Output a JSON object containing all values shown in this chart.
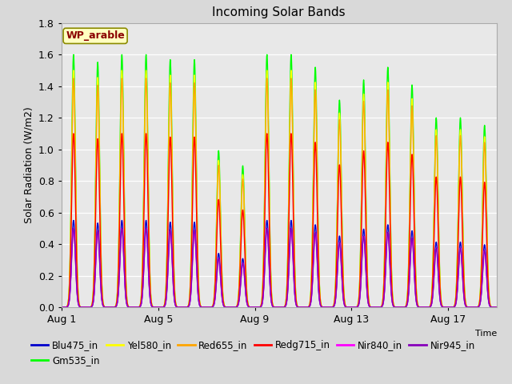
{
  "title": "Incoming Solar Bands",
  "xlabel": "Time",
  "ylabel": "Solar Radiation (W/m2)",
  "annotation_text": "WP_arable",
  "annotation_color": "#8B0000",
  "annotation_bg": "#FFFFC0",
  "annotation_border": "#8B8B00",
  "ylim": [
    0.0,
    1.8
  ],
  "yticks": [
    0.0,
    0.2,
    0.4,
    0.6,
    0.8,
    1.0,
    1.2,
    1.4,
    1.6,
    1.8
  ],
  "xtick_labels": [
    "Aug 1",
    "Aug 5",
    "Aug 9",
    "Aug 13",
    "Aug 17"
  ],
  "xtick_positions": [
    0,
    4,
    8,
    12,
    16
  ],
  "n_days": 18,
  "samples_per_day": 200,
  "figsize": [
    6.4,
    4.8
  ],
  "dpi": 100,
  "bg_color": "#d9d9d9",
  "plot_bg_color": "#e8e8e8",
  "series_configs": [
    {
      "label": "Blu475_in",
      "color": "#0000CC",
      "scale": 0.55
    },
    {
      "label": "Gm535_in",
      "color": "#00FF00",
      "scale": 1.6
    },
    {
      "label": "Yel580_in",
      "color": "#FFFF00",
      "scale": 1.5
    },
    {
      "label": "Red655_in",
      "color": "#FFA500",
      "scale": 1.45
    },
    {
      "label": "Redg715_in",
      "color": "#FF0000",
      "scale": 1.1
    },
    {
      "label": "Nir840_in",
      "color": "#FF00FF",
      "scale": 0.5
    },
    {
      "label": "Nir945_in",
      "color": "#8800BB",
      "scale": 0.5
    }
  ],
  "day_scales": [
    1.0,
    0.97,
    1.0,
    1.0,
    0.98,
    0.98,
    0.62,
    0.56,
    1.0,
    1.0,
    0.95,
    0.82,
    0.9,
    0.95,
    0.88,
    0.75,
    0.75,
    0.72
  ]
}
